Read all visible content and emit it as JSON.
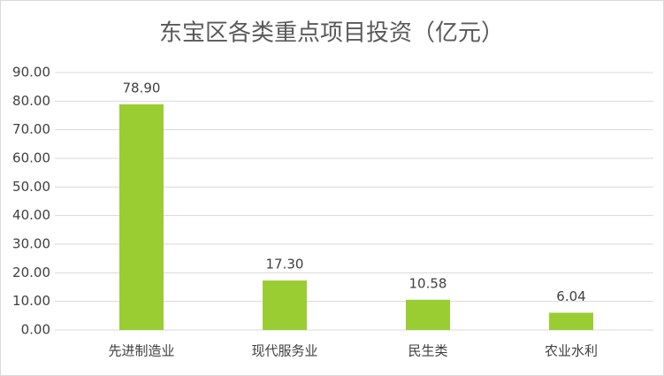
{
  "chart_data": {
    "type": "bar",
    "title": "东宝区各类重点项目投资（亿元）",
    "categories": [
      "先进制造业",
      "现代服务业",
      "民生类",
      "农业水利"
    ],
    "values": [
      78.9,
      17.3,
      10.58,
      6.04
    ],
    "value_labels": [
      "78.90",
      "17.30",
      "10.58",
      "6.04"
    ],
    "color": "#9acd32",
    "ylim": [
      0,
      90
    ],
    "yticks": [
      {
        "value": 0,
        "label": "0.00"
      },
      {
        "value": 10,
        "label": "10.00"
      },
      {
        "value": 20,
        "label": "20.00"
      },
      {
        "value": 30,
        "label": "30.00"
      },
      {
        "value": 40,
        "label": "40.00"
      },
      {
        "value": 50,
        "label": "50.00"
      },
      {
        "value": 60,
        "label": "60.00"
      },
      {
        "value": 70,
        "label": "70.00"
      },
      {
        "value": 80,
        "label": "80.00"
      },
      {
        "value": 90,
        "label": "90.00"
      }
    ],
    "grid": true
  }
}
